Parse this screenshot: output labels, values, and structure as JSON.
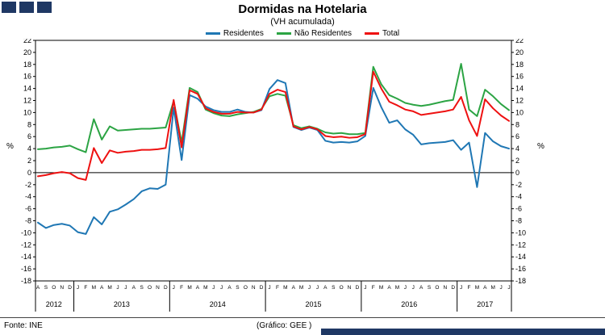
{
  "branding": {
    "navy": "#1F3864",
    "logo_squares": 3
  },
  "chart_data": {
    "type": "line",
    "title": "Dormidas na Hotelaria",
    "subtitle": "(VH acumulada)",
    "ylabel_left": "%",
    "ylabel_right": "%",
    "ylim": [
      -18,
      22
    ],
    "ytick_step": 2,
    "grid": false,
    "legend_position": "top",
    "x_months": [
      "A",
      "S",
      "O",
      "N",
      "D",
      "J",
      "F",
      "M",
      "A",
      "M",
      "J",
      "J",
      "A",
      "S",
      "O",
      "N",
      "D",
      "J",
      "F",
      "M",
      "A",
      "M",
      "J",
      "J",
      "A",
      "S",
      "O",
      "N",
      "D",
      "J",
      "F",
      "M",
      "A",
      "M",
      "J",
      "J",
      "A",
      "S",
      "O",
      "N",
      "D",
      "J",
      "F",
      "M",
      "A",
      "M",
      "J",
      "J",
      "A",
      "S",
      "O",
      "N",
      "D",
      "J",
      "F",
      "M",
      "A",
      "M",
      "J",
      "J"
    ],
    "year_groups": [
      {
        "label": "2012",
        "count": 5
      },
      {
        "label": "2013",
        "count": 12
      },
      {
        "label": "2014",
        "count": 12
      },
      {
        "label": "2015",
        "count": 12
      },
      {
        "label": "2016",
        "count": 12
      },
      {
        "label": "2017",
        "count": 7
      }
    ],
    "series": [
      {
        "name": "Residentes",
        "color": "#1F77B4",
        "values": [
          -8.3,
          -9.2,
          -8.7,
          -8.5,
          -8.8,
          -9.9,
          -10.2,
          -7.4,
          -8.6,
          -6.5,
          -6.1,
          -5.3,
          -4.4,
          -3.1,
          -2.6,
          -2.7,
          -2.0,
          10.8,
          2.1,
          12.9,
          12.3,
          11.0,
          10.4,
          10.1,
          10.1,
          10.5,
          10.1,
          10.0,
          10.4,
          13.9,
          15.4,
          14.9,
          7.6,
          7.1,
          7.5,
          7.1,
          5.3,
          5.0,
          5.1,
          5.0,
          5.2,
          6.1,
          14.1,
          10.9,
          8.3,
          8.7,
          7.2,
          6.3,
          4.7,
          4.9,
          5.0,
          5.1,
          5.4,
          3.8,
          5.0,
          -2.4,
          6.6,
          5.2,
          4.4,
          4.0
        ]
      },
      {
        "name": "Não Residentes",
        "color": "#2CA444",
        "values": [
          3.9,
          4.0,
          4.2,
          4.3,
          4.5,
          3.9,
          3.4,
          8.9,
          5.5,
          7.7,
          7.0,
          7.1,
          7.2,
          7.3,
          7.3,
          7.4,
          7.5,
          11.9,
          5.0,
          14.1,
          13.4,
          10.5,
          9.9,
          9.5,
          9.4,
          9.7,
          9.9,
          10.1,
          10.6,
          12.7,
          13.1,
          12.8,
          7.9,
          7.4,
          7.7,
          7.3,
          6.7,
          6.5,
          6.6,
          6.4,
          6.4,
          6.6,
          17.6,
          14.7,
          12.9,
          12.3,
          11.6,
          11.3,
          11.1,
          11.3,
          11.6,
          11.9,
          12.1,
          18.1,
          10.5,
          9.4,
          13.8,
          12.7,
          11.4,
          10.4
        ]
      },
      {
        "name": "Total",
        "color": "#EE1111",
        "values": [
          -0.6,
          -0.4,
          -0.1,
          0.1,
          -0.1,
          -0.9,
          -1.2,
          4.1,
          1.6,
          3.7,
          3.3,
          3.5,
          3.6,
          3.8,
          3.8,
          3.9,
          4.1,
          12.1,
          4.2,
          13.7,
          13.1,
          10.7,
          10.1,
          9.8,
          9.8,
          10.1,
          10.0,
          10.0,
          10.5,
          13.1,
          13.8,
          13.4,
          7.7,
          7.2,
          7.6,
          7.2,
          6.1,
          5.9,
          6.0,
          5.8,
          5.9,
          6.4,
          16.8,
          14.0,
          11.8,
          11.2,
          10.5,
          10.2,
          9.6,
          9.8,
          10.0,
          10.2,
          10.5,
          12.6,
          8.7,
          6.1,
          12.2,
          10.7,
          9.5,
          8.6
        ]
      }
    ]
  },
  "footer": {
    "source": "Fonte: INE",
    "credit": "(Gráfico: GEE )"
  }
}
